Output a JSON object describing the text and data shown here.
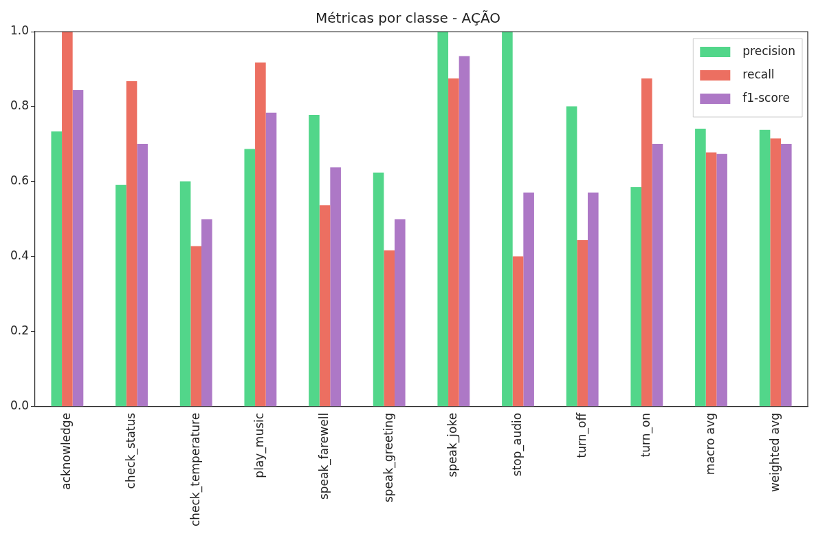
{
  "chart_data": {
    "type": "bar",
    "title": "Métricas por classe - AÇÃO",
    "categories": [
      "acknowledge",
      "check_status",
      "check_temperature",
      "play_music",
      "speak_farewell",
      "speak_greeting",
      "speak_joke",
      "stop_audio",
      "turn_off",
      "turn_on",
      "macro avg",
      "weighted avg"
    ],
    "series": [
      {
        "name": "precision",
        "color": "#52d68a",
        "values": [
          0.734,
          0.591,
          0.601,
          0.687,
          0.778,
          0.624,
          1.0,
          1.0,
          0.801,
          0.585,
          0.741,
          0.738
        ]
      },
      {
        "name": "recall",
        "color": "#ec6f61",
        "values": [
          1.0,
          0.868,
          0.428,
          0.918,
          0.537,
          0.417,
          0.875,
          0.401,
          0.444,
          0.875,
          0.678,
          0.715
        ]
      },
      {
        "name": "f1-score",
        "color": "#ad78c6",
        "values": [
          0.844,
          0.701,
          0.5,
          0.784,
          0.638,
          0.5,
          0.935,
          0.571,
          0.571,
          0.701,
          0.674,
          0.701
        ]
      }
    ],
    "ylim": [
      0,
      1
    ],
    "yticks": [
      {
        "value": 0,
        "label": "0.0"
      },
      {
        "value": 0.2,
        "label": "0.2"
      },
      {
        "value": 0.4,
        "label": "0.4"
      },
      {
        "value": 0.6,
        "label": "0.6"
      },
      {
        "value": 0.8,
        "label": "0.8"
      },
      {
        "value": 1,
        "label": "1.0"
      }
    ],
    "grid": false,
    "legend": "top right"
  }
}
